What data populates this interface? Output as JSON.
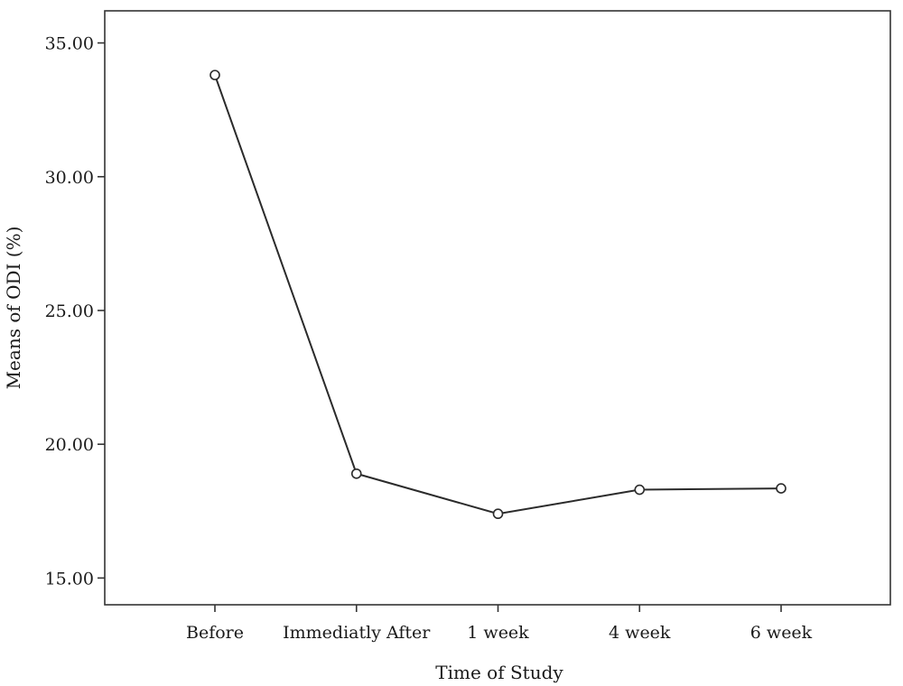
{
  "chart_data": {
    "type": "line",
    "title": "",
    "xlabel": "Time of Study",
    "ylabel": "Means of ODI (%)",
    "categories": [
      "Before",
      "Immediatly After",
      "1 week",
      "4 week",
      "6 week"
    ],
    "series": [
      {
        "values": [
          33.8,
          18.9,
          17.4,
          18.3,
          18.35
        ]
      }
    ],
    "ylim": [
      14.0,
      36.2
    ],
    "yticks": [
      "15.00",
      "20.00",
      "25.00",
      "30.00",
      "35.00"
    ],
    "grid": false,
    "legend": "none",
    "colors": {
      "line": "#2b2b2b",
      "marker_fill": "#ffffff",
      "frame": "#333333"
    }
  }
}
